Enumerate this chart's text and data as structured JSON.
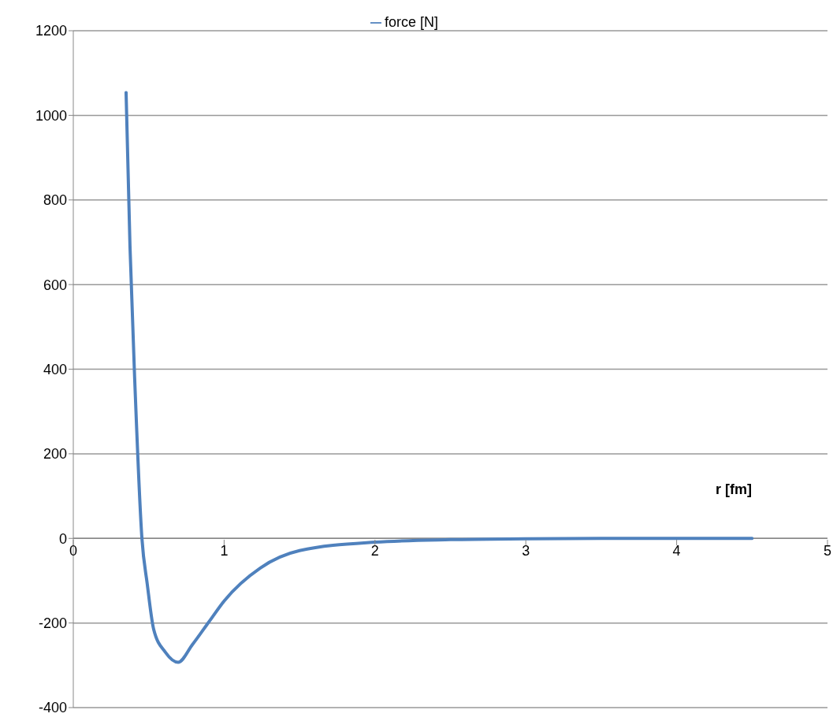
{
  "chart_data": {
    "type": "line",
    "xlabel": "r  [fm]",
    "legend": "top",
    "grid": "y",
    "marker": "none",
    "line_style": "solid",
    "series": [
      {
        "name": "force    [N]",
        "color": "#4f81bd",
        "x": [
          0.35,
          0.376,
          0.41,
          0.455,
          0.49,
          0.533,
          0.61,
          0.695,
          0.79,
          0.9,
          1.0,
          1.24,
          1.5,
          2.0,
          2.5,
          3.0,
          3.5,
          4.0,
          4.5
        ],
        "values": [
          1054,
          689,
          350,
          0,
          -107,
          -215,
          -269,
          -293,
          -251,
          -197,
          -148,
          -70,
          -29,
          -9,
          -3,
          -1,
          0,
          0,
          0
        ]
      }
    ],
    "xlim": [
      0,
      5
    ],
    "xticks": [
      0,
      1,
      2,
      3,
      4,
      5
    ],
    "ylim": [
      -400,
      1200
    ],
    "yticks": [
      -400,
      -200,
      0,
      200,
      400,
      600,
      800,
      1000,
      1200
    ]
  }
}
